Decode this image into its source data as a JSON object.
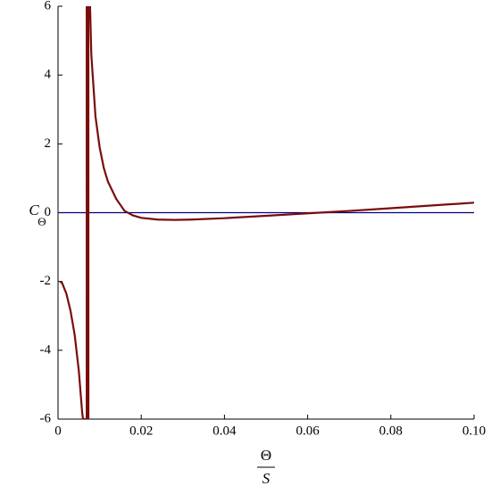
{
  "chart_data": {
    "type": "line",
    "ylabel": {
      "main": "C",
      "sub": "Θ"
    },
    "xlabel": {
      "numerator": "Θ",
      "denominator": "S"
    },
    "xlim": [
      0,
      0.1
    ],
    "ylim": [
      -6,
      6
    ],
    "xticks": [
      0,
      0.02,
      0.04,
      0.06,
      0.08,
      {
        "value": 0.1,
        "label": "0.10"
      }
    ],
    "yticks": [
      -6,
      -4,
      -2,
      0,
      2,
      4,
      6
    ],
    "series": [
      {
        "color": "#000080",
        "x": [
          0,
          0.1
        ],
        "values": [
          0,
          0
        ]
      },
      {
        "color": "#7a0c0c",
        "x": [
          0.0005,
          0.001,
          0.002,
          0.003,
          0.004,
          0.005,
          0.0058,
          0.006,
          0.0069,
          0.0069,
          0.0073,
          0.0073,
          null,
          0.0077,
          0.008,
          0.009,
          0.01,
          0.011,
          0.012,
          0.014,
          0.016,
          0.018,
          0.02,
          0.024,
          0.028,
          0.032,
          0.04,
          0.05,
          0.06,
          0.07,
          0.08,
          0.09,
          0.1
        ],
        "values": [
          -2,
          -2.05,
          -2.35,
          -2.85,
          -3.55,
          -4.6,
          -5.8,
          -6,
          -6,
          6,
          6,
          -6,
          null,
          6,
          4.6,
          2.8,
          1.9,
          1.3,
          0.9,
          0.4,
          0.05,
          -0.08,
          -0.15,
          -0.2,
          -0.21,
          -0.2,
          -0.16,
          -0.09,
          -0.02,
          0.05,
          0.13,
          0.21,
          0.29
        ]
      }
    ]
  }
}
